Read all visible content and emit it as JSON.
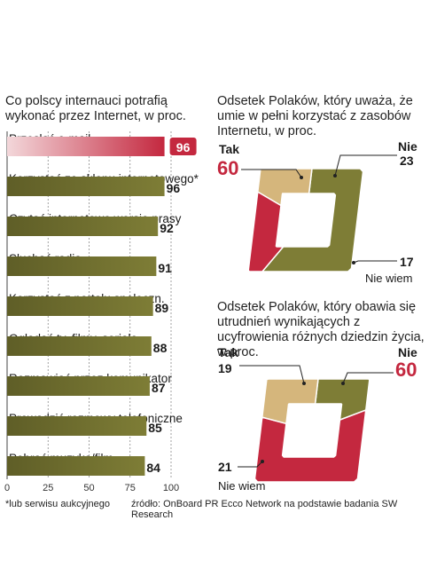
{
  "colors": {
    "olive": "#7e7d36",
    "olive_dark": "#5f5e27",
    "red": "#c4283f",
    "pink": "#d98a93",
    "tan": "#d5b67c",
    "accent": "#c4283f"
  },
  "chart_data": [
    {
      "type": "bar",
      "title": "Co polscy internauci potrafią wykonać przez Internet, w proc.",
      "categories": [
        "Przesłać e-mail",
        "Korzystać ze sklepu internetowego*",
        "Czytać internetowe wersje prasy",
        "Słuchać radia",
        "Korzystać z portalu społeczn.",
        "Oglądać tv, filmy, seriale",
        "Rozmawiać przez komunikator",
        "Prowadzić rozmowy telefoniczne",
        "Pobrać muzykę/film"
      ],
      "values": [
        96,
        96,
        92,
        91,
        89,
        88,
        87,
        85,
        84
      ],
      "value_labels": [
        "96",
        "96",
        "92",
        "91",
        "89",
        "88",
        "87",
        "85",
        "84"
      ],
      "highlight_index": 0,
      "xlim": [
        0,
        100
      ],
      "xticks": [
        0,
        25,
        50,
        75,
        100
      ],
      "xtick_labels": [
        "0",
        "25",
        "50",
        "75",
        "100"
      ],
      "xlabel": "",
      "ylabel": ""
    },
    {
      "type": "pie",
      "title": "Odsetek Polaków, który uważa, że umie w pełni korzystać z zasobów Internetu, w proc.",
      "slices": [
        {
          "label": "Tak",
          "value": 60,
          "value_label": "60",
          "color": "#7e7d36",
          "highlight": true
        },
        {
          "label": "Nie",
          "value": 23,
          "value_label": "23",
          "color": "#c4283f",
          "highlight": false
        },
        {
          "label": "Nie wiem",
          "value": 17,
          "value_label": "17",
          "color": "#d5b67c",
          "highlight": false
        }
      ]
    },
    {
      "type": "pie",
      "title": "Odsetek Polaków, który obawia się utrudnień wynikających z ucyfrowienia różnych dziedzin życia, w proc.",
      "slices": [
        {
          "label": "Tak",
          "value": 19,
          "value_label": "19",
          "color": "#7e7d36",
          "highlight": false
        },
        {
          "label": "Nie",
          "value": 60,
          "value_label": "60",
          "color": "#c4283f",
          "highlight": true
        },
        {
          "label": "Nie wiem",
          "value": 21,
          "value_label": "21",
          "color": "#d5b67c",
          "highlight": false
        }
      ]
    }
  ],
  "footnote": "*lub serwisu aukcyjnego",
  "source": "źródło: OnBoard PR Ecco Network na podstawie badania SW Research"
}
